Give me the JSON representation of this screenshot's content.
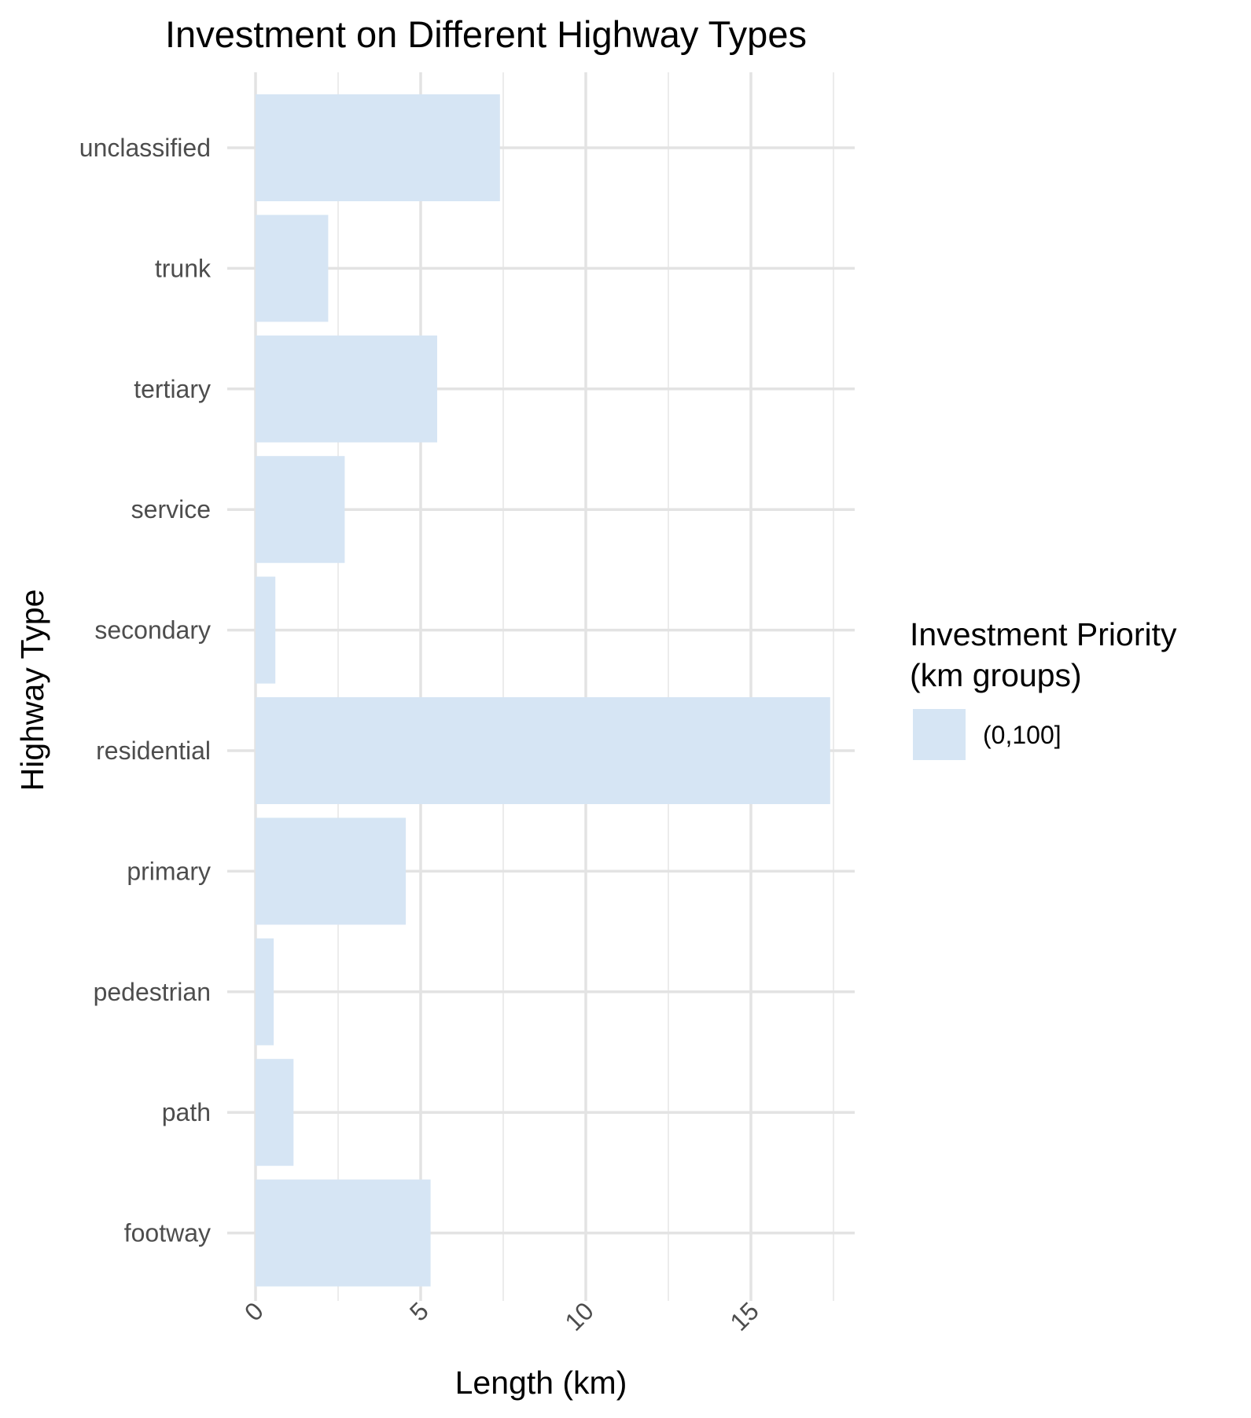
{
  "chart_data": {
    "type": "bar",
    "orientation": "horizontal",
    "title": "Investment on Different Highway Types",
    "xlabel": "Length (km)",
    "ylabel": "Highway Type",
    "categories": [
      "footway",
      "path",
      "pedestrian",
      "primary",
      "residential",
      "secondary",
      "service",
      "tertiary",
      "trunk",
      "unclassified"
    ],
    "values": [
      5.3,
      1.15,
      0.55,
      4.55,
      17.4,
      0.6,
      2.7,
      5.5,
      2.2,
      7.4
    ],
    "xlim": [
      0,
      18.2
    ],
    "x_ticks": [
      "0",
      "5",
      "10",
      "15"
    ],
    "x_tick_rotation": -45,
    "grid": true,
    "legend": {
      "title_line1": "Investment Priority",
      "title_line2": "(km groups)",
      "entries": [
        {
          "label": "(0,100]",
          "color": "#d6e5f4"
        }
      ],
      "position": "right"
    },
    "bar_color": "#d6e5f4",
    "grid_color": "#e3e3e3"
  }
}
